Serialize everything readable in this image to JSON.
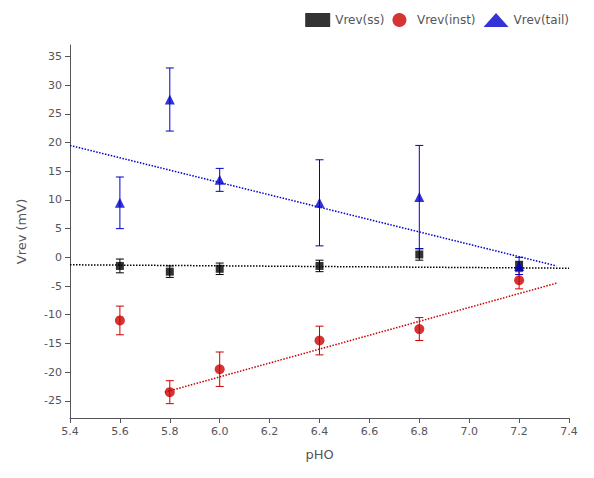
{
  "chart_data": {
    "type": "scatter",
    "xlabel": "pHO",
    "ylabel": "Vrev (mV)",
    "xlim": [
      5.4,
      7.4
    ],
    "ylim": [
      -28,
      37
    ],
    "xticks": [
      5.4,
      5.6,
      5.8,
      {
        "value": 6.0,
        "label": "6.0"
      },
      6.2,
      6.4,
      6.6,
      6.8,
      {
        "value": 7.0,
        "label": "7.0"
      },
      7.2,
      7.4
    ],
    "yticks": [
      -25,
      -20,
      -15,
      -10,
      -5,
      0,
      5,
      10,
      15,
      20,
      25,
      30,
      35
    ],
    "grid": false,
    "legend": "upper right",
    "series": [
      {
        "name": "Vrev(ss)",
        "color": "#000000",
        "marker": "square",
        "x": [
          5.6,
          5.8,
          6.0,
          6.4,
          6.8,
          7.2
        ],
        "values": [
          -1.5,
          -2.5,
          -2.0,
          -1.5,
          0.5,
          -1.5
        ],
        "yerr": [
          1.2,
          1.0,
          1.0,
          1.0,
          1.0,
          0.8
        ]
      },
      {
        "name": "Vrev(inst)",
        "color": "#cc0000",
        "marker": "circle",
        "x": [
          5.6,
          5.8,
          6.0,
          6.4,
          6.8,
          7.2
        ],
        "values": [
          -11.0,
          -23.5,
          -19.5,
          -14.5,
          -12.5,
          -4.0
        ],
        "yerr": [
          2.5,
          2.0,
          3.0,
          2.5,
          2.0,
          1.5
        ]
      },
      {
        "name": "Vrev(tail)",
        "color": "#0000cc",
        "marker": "triangle",
        "x": [
          5.6,
          5.8,
          6.0,
          6.4,
          6.8,
          7.2
        ],
        "values": [
          9.5,
          27.5,
          13.5,
          9.5,
          10.5,
          -1.5
        ],
        "yerr": [
          4.5,
          5.5,
          2.0,
          7.5,
          9.0,
          1.5
        ]
      }
    ],
    "fit_lines": [
      {
        "type": "line",
        "line_style": "dotted",
        "color": "#000000",
        "x": [
          5.4,
          7.4
        ],
        "values": [
          -1.3,
          -1.9
        ]
      },
      {
        "type": "line",
        "line_style": "dotted",
        "color": "#cc0000",
        "x": [
          5.78,
          7.35
        ],
        "values": [
          -23.5,
          -4.5
        ]
      },
      {
        "type": "line",
        "line_style": "dotted",
        "color": "#0000cc",
        "x": [
          5.4,
          7.35
        ],
        "values": [
          19.5,
          -1.5
        ]
      }
    ]
  }
}
